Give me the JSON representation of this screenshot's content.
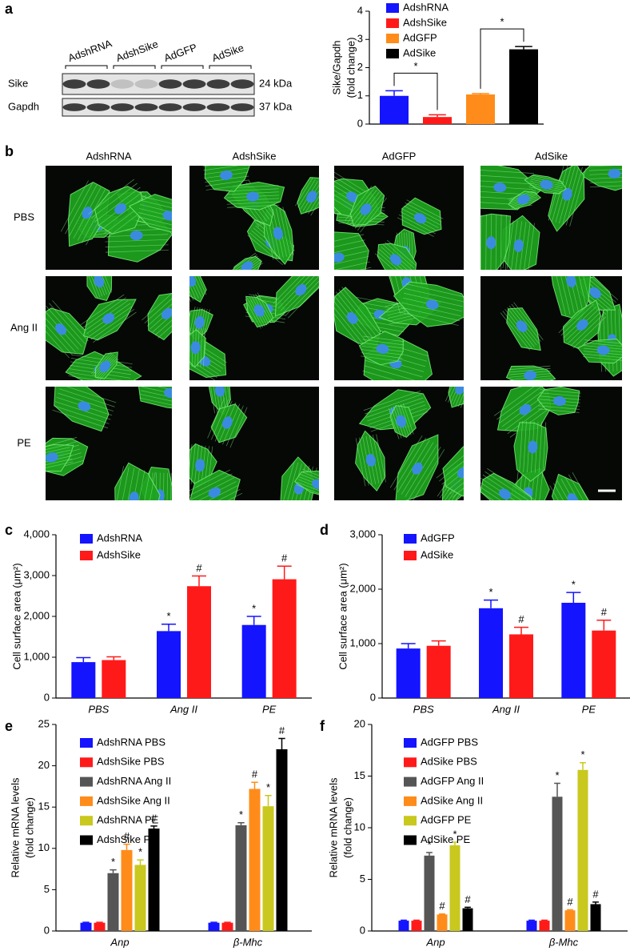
{
  "blot": {
    "label": "a",
    "lanes": [
      "AdshRNA",
      "AdshSike",
      "AdGFP",
      "AdSike"
    ],
    "rows": [
      {
        "name": "Sike",
        "size": "24 kDa"
      },
      {
        "name": "Gapdh",
        "size": "37 kDa"
      }
    ]
  },
  "micrographs": {
    "label": "b",
    "columns": [
      "AdshRNA",
      "AdshSike",
      "AdGFP",
      "AdSike"
    ],
    "rows": [
      "PBS",
      "Ang II",
      "PE"
    ]
  },
  "chart_data": [
    {
      "type": "bar",
      "y_label": [
        "Sike/Gapdh",
        "(fold change)"
      ],
      "series": [
        {
          "name": "AdshRNA",
          "color": "#1414ff",
          "values": [
            1.0
          ],
          "errors": [
            0.18
          ]
        },
        {
          "name": "AdshSike",
          "color": "#ff1a1a",
          "values": [
            0.25
          ],
          "errors": [
            0.08
          ]
        },
        {
          "name": "AdGFP",
          "color": "#ff8c1a",
          "values": [
            1.05
          ],
          "errors": [
            0.03
          ]
        },
        {
          "name": "AdSike",
          "color": "#000000",
          "values": [
            2.65
          ],
          "errors": [
            0.1
          ]
        }
      ],
      "ylim": [
        0,
        4
      ],
      "yticks": [
        0,
        1,
        2,
        3,
        4
      ],
      "significance": [
        "*",
        "*"
      ]
    },
    {
      "type": "bar",
      "label": "c",
      "y_label": "Cell surface area (μm²)",
      "categories": [
        "PBS",
        "Ang II",
        "PE"
      ],
      "series": [
        {
          "name": "AdshRNA",
          "color": "#1414ff",
          "values": [
            880,
            1640,
            1790
          ],
          "errors": [
            110,
            170,
            210
          ],
          "marks": [
            null,
            "*",
            "*"
          ]
        },
        {
          "name": "AdshSike",
          "color": "#ff1a1a",
          "values": [
            930,
            2740,
            2910
          ],
          "errors": [
            80,
            250,
            320
          ],
          "marks": [
            null,
            "#",
            "#"
          ]
        }
      ],
      "ylim": [
        0,
        4000
      ],
      "yticks": [
        0,
        {
          "value": 1000,
          "label": "1,000"
        },
        {
          "value": 2000,
          "label": "2,000"
        },
        {
          "value": 3000,
          "label": "3,000"
        },
        {
          "value": 4000,
          "label": "4,000"
        }
      ]
    },
    {
      "type": "bar",
      "label": "d",
      "y_label": "Cell surface area (μm²)",
      "categories": [
        "PBS",
        "Ang II",
        "PE"
      ],
      "series": [
        {
          "name": "AdGFP",
          "color": "#1414ff",
          "values": [
            910,
            1650,
            1750
          ],
          "errors": [
            90,
            150,
            190
          ],
          "marks": [
            null,
            "*",
            "*"
          ]
        },
        {
          "name": "AdSike",
          "color": "#ff1a1a",
          "values": [
            960,
            1170,
            1240
          ],
          "errors": [
            90,
            130,
            190
          ],
          "marks": [
            null,
            "#",
            "#"
          ]
        }
      ],
      "ylim": [
        0,
        3000
      ],
      "yticks": [
        0,
        {
          "value": 1000,
          "label": "1,000"
        },
        {
          "value": 2000,
          "label": "2,000"
        },
        {
          "value": 3000,
          "label": "3,000"
        }
      ]
    },
    {
      "type": "bar",
      "label": "e",
      "y_label": [
        "Relative mRNA levels",
        "(fold change)"
      ],
      "categories": [
        "Anp",
        "β-Mhc"
      ],
      "series": [
        {
          "name": "AdshRNA PBS",
          "color": "#1414ff",
          "values": [
            1.0,
            1.0
          ],
          "errors": [
            0.05,
            0.05
          ],
          "marks": [
            null,
            null
          ]
        },
        {
          "name": "AdshSike PBS",
          "color": "#ff1a1a",
          "values": [
            1.0,
            1.0
          ],
          "errors": [
            0.05,
            0.05
          ],
          "marks": [
            null,
            null
          ]
        },
        {
          "name": "AdshRNA Ang II",
          "color": "#555555",
          "values": [
            7.0,
            12.8
          ],
          "errors": [
            0.4,
            0.3
          ],
          "marks": [
            "*",
            "*"
          ]
        },
        {
          "name": "AdshSike Ang II",
          "color": "#ff8c1a",
          "values": [
            9.8,
            17.2
          ],
          "errors": [
            0.7,
            0.8
          ],
          "marks": [
            "#",
            "#"
          ]
        },
        {
          "name": "AdshRNA PE",
          "color": "#c8c81e",
          "values": [
            8.0,
            15.1
          ],
          "errors": [
            0.6,
            1.3
          ],
          "marks": [
            "*",
            "*"
          ]
        },
        {
          "name": "AdshSike PE",
          "color": "#000000",
          "values": [
            12.4,
            22.0
          ],
          "errors": [
            0.3,
            1.3
          ],
          "marks": [
            "#",
            "#"
          ]
        }
      ],
      "ylim": [
        0,
        25
      ],
      "yticks": [
        0,
        5,
        10,
        15,
        20,
        25
      ]
    },
    {
      "type": "bar",
      "label": "f",
      "y_label": [
        "Relative mRNA levels",
        "(fold change)"
      ],
      "categories": [
        "Anp",
        "β-Mhc"
      ],
      "series": [
        {
          "name": "AdGFP PBS",
          "color": "#1414ff",
          "values": [
            1.0,
            1.0
          ],
          "errors": [
            0.05,
            0.05
          ],
          "marks": [
            null,
            null
          ]
        },
        {
          "name": "AdSike PBS",
          "color": "#ff1a1a",
          "values": [
            1.0,
            1.0
          ],
          "errors": [
            0.05,
            0.05
          ],
          "marks": [
            null,
            null
          ]
        },
        {
          "name": "AdGFP Ang II",
          "color": "#555555",
          "values": [
            7.3,
            13.0
          ],
          "errors": [
            0.3,
            1.3
          ],
          "marks": [
            "*",
            "*"
          ]
        },
        {
          "name": "AdSike Ang II",
          "color": "#ff8c1a",
          "values": [
            1.6,
            2.0
          ],
          "errors": [
            0.05,
            0.05
          ],
          "marks": [
            "#",
            "#"
          ]
        },
        {
          "name": "AdGFP PE",
          "color": "#c8c81e",
          "values": [
            8.3,
            15.6
          ],
          "errors": [
            0.3,
            0.7
          ],
          "marks": [
            "*",
            "*"
          ]
        },
        {
          "name": "AdSike PE",
          "color": "#000000",
          "values": [
            2.2,
            2.6
          ],
          "errors": [
            0.1,
            0.2
          ],
          "marks": [
            "#",
            "#"
          ]
        }
      ],
      "ylim": [
        0,
        20
      ],
      "yticks": [
        0,
        5,
        10,
        15,
        20
      ]
    }
  ]
}
